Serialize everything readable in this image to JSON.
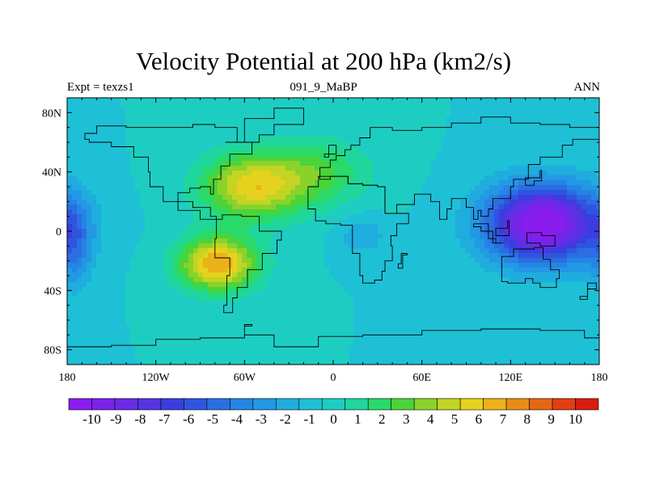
{
  "chart_data": {
    "type": "heatmap",
    "title": "Velocity Potential at 200 hPa (km2/s)",
    "left_subtitle": "Expt = texzs1",
    "center_subtitle": "091_9_MaBP",
    "right_subtitle": "ANN",
    "x_ticks": [
      "180",
      "120W",
      "60W",
      "0",
      "60E",
      "120E",
      "180"
    ],
    "x_tick_values": [
      -180,
      -120,
      -60,
      0,
      60,
      120,
      180
    ],
    "y_ticks": [
      "80N",
      "40N",
      "0",
      "40S",
      "80S"
    ],
    "y_tick_values": [
      80,
      40,
      0,
      -40,
      -80
    ],
    "xlim": [
      -180,
      180
    ],
    "ylim": [
      -90,
      90
    ],
    "colorbar": {
      "labels": [
        "-10",
        "-9",
        "-8",
        "-7",
        "-6",
        "-5",
        "-4",
        "-3",
        "-2",
        "-1",
        "0",
        "1",
        "2",
        "3",
        "4",
        "5",
        "6",
        "7",
        "8",
        "9",
        "10"
      ],
      "values": [
        -10,
        -9,
        -8,
        -7,
        -6,
        -5,
        -4,
        -3,
        -2,
        -1,
        0,
        1,
        2,
        3,
        4,
        5,
        6,
        7,
        8,
        9,
        10
      ],
      "colors": [
        "#8a1cf0",
        "#7a22ea",
        "#6a2be6",
        "#5533e2",
        "#3c3de0",
        "#2f55e0",
        "#2a6ee2",
        "#2684e4",
        "#2398e4",
        "#1fadde",
        "#1ec0d6",
        "#1ecdc2",
        "#1fd69d",
        "#29d96a",
        "#4ad43a",
        "#8ad22a",
        "#c3d424",
        "#e6d21e",
        "#ecb219",
        "#e88c17",
        "#e46814",
        "#e23e12",
        "#d81c10"
      ]
    },
    "field_features": [
      {
        "lon": 142,
        "lat": 5,
        "amp": -11.5,
        "slon": 38,
        "slat": 26,
        "note": "velocity potential minimum over western Pacific"
      },
      {
        "lon": -78,
        "lat": -22,
        "amp": 8.0,
        "slon": 26,
        "slat": 18,
        "note": "maximum over South America"
      },
      {
        "lon": -55,
        "lat": 30,
        "amp": 6.5,
        "slon": 34,
        "slat": 22,
        "note": "maximum over North Atlantic"
      },
      {
        "lon": -10,
        "lat": 40,
        "amp": 3.0,
        "slon": 35,
        "slat": 22,
        "note": "secondary high over Europe and Africa"
      },
      {
        "lon": 20,
        "lat": -3,
        "amp": -2.0,
        "slon": 15,
        "slat": 12,
        "note": "local low over central Africa"
      },
      {
        "lon": -175,
        "lat": -10,
        "amp": -3.0,
        "slon": 12,
        "slat": 30,
        "note": "low near dateline"
      }
    ]
  }
}
